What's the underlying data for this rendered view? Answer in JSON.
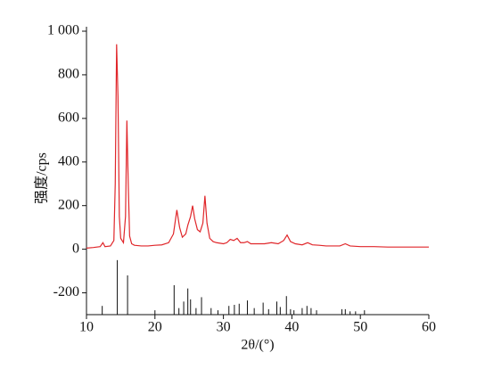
{
  "chart_data": {
    "type": "line",
    "x_label": "2θ/(°)",
    "y_label": "强度/cps",
    "xlim": [
      10,
      60
    ],
    "xticks": [
      10,
      20,
      30,
      40,
      50,
      60
    ],
    "ylim": [
      -300,
      1000
    ],
    "yticks": [
      {
        "value": 1000,
        "label": "1 000"
      },
      800,
      600,
      400,
      200,
      0,
      -200
    ],
    "series": [
      {
        "color": "#e0262a",
        "x": [
          10,
          11,
          12,
          12.4,
          12.7,
          13.5,
          14.0,
          14.2,
          14.4,
          14.6,
          14.8,
          15.0,
          15.4,
          15.7,
          15.9,
          16.1,
          16.3,
          16.6,
          17,
          18,
          19,
          20,
          21,
          22,
          22.7,
          23.2,
          23.6,
          24.0,
          24.5,
          24.8,
          25.2,
          25.5,
          25.8,
          26.2,
          26.6,
          27.0,
          27.3,
          27.6,
          28.0,
          28.5,
          29,
          30,
          30.5,
          31,
          31.5,
          32,
          32.5,
          33,
          33.5,
          34,
          35,
          36,
          37,
          38,
          38.8,
          39.3,
          39.8,
          40.5,
          41.5,
          42.3,
          43,
          44,
          45,
          46,
          47,
          47.8,
          48.5,
          50,
          52,
          54,
          56,
          58,
          60
        ],
        "values": [
          5,
          8,
          12,
          30,
          12,
          15,
          40,
          300,
          940,
          700,
          150,
          50,
          30,
          150,
          590,
          300,
          60,
          25,
          18,
          15,
          15,
          18,
          20,
          30,
          70,
          180,
          100,
          55,
          70,
          110,
          150,
          200,
          140,
          90,
          80,
          120,
          245,
          120,
          50,
          35,
          30,
          25,
          30,
          45,
          40,
          50,
          30,
          30,
          35,
          25,
          25,
          25,
          30,
          25,
          40,
          65,
          35,
          25,
          20,
          30,
          20,
          18,
          15,
          15,
          15,
          25,
          15,
          12,
          12,
          10,
          10,
          10,
          10
        ]
      }
    ],
    "reference": {
      "color": "#111111",
      "x": [
        12.3,
        14.5,
        16,
        20,
        22.8,
        23.5,
        24.2,
        24.8,
        25.2,
        26,
        26.8,
        28.2,
        29.2,
        30.8,
        31.6,
        32.3,
        33.5,
        34.5,
        35.8,
        36.6,
        37.8,
        38.3,
        39.2,
        39.8,
        40.3,
        41.5,
        42.2,
        42.8,
        43.6,
        47.3,
        47.8,
        48.5,
        49.3,
        50.6
      ],
      "values": [
        -260,
        -50,
        -120,
        -280,
        -165,
        -270,
        -240,
        -180,
        -230,
        -270,
        -220,
        -270,
        -280,
        -260,
        -255,
        -250,
        -235,
        -270,
        -245,
        -275,
        -240,
        -265,
        -215,
        -275,
        -280,
        -270,
        -260,
        -270,
        -280,
        -275,
        -275,
        -285,
        -285,
        -280
      ]
    }
  }
}
